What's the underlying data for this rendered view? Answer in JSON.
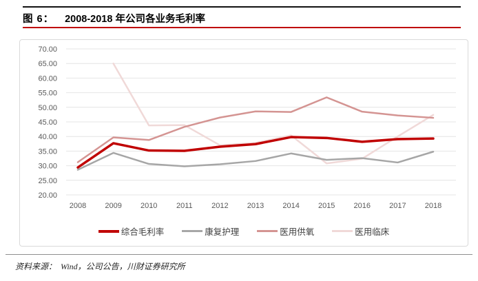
{
  "header": {
    "figure_label": "图 6：",
    "title": "2008-2018 年公司各业务毛利率",
    "accent_color": "#bf0000"
  },
  "chart_data": {
    "type": "line",
    "title": "2008-2018 年公司各业务毛利率",
    "categories": [
      "2008",
      "2009",
      "2010",
      "2011",
      "2012",
      "2013",
      "2014",
      "2015",
      "2016",
      "2017",
      "2018"
    ],
    "series": [
      {
        "name": "综合毛利率",
        "color": "#c00000",
        "stroke_width": 3.5,
        "values": [
          29.4,
          37.7,
          35.2,
          35.1,
          36.5,
          37.4,
          39.8,
          39.5,
          38.2,
          39.1,
          39.3
        ]
      },
      {
        "name": "康复护理",
        "color": "#a6a6a6",
        "stroke_width": 2.5,
        "values": [
          28.6,
          34.4,
          30.6,
          29.8,
          30.5,
          31.6,
          34.2,
          32.0,
          32.6,
          31.1,
          34.8
        ]
      },
      {
        "name": "医用供氧",
        "color": "#d49492",
        "stroke_width": 2.5,
        "values": [
          31.2,
          39.7,
          38.8,
          43.3,
          46.5,
          48.6,
          48.4,
          53.4,
          48.5,
          47.2,
          46.4
        ]
      },
      {
        "name": "医用临床",
        "color": "#f0d9d8",
        "stroke_width": 2.5,
        "values": [
          null,
          65.0,
          43.8,
          43.9,
          37.0,
          37.8,
          40.4,
          30.8,
          32.4,
          40.0,
          47.4
        ]
      }
    ],
    "ylim": [
      20,
      70
    ],
    "ytick_step": 5,
    "ytick_labels": [
      "70.00",
      "65.00",
      "60.00",
      "55.00",
      "50.00",
      "45.00",
      "40.00",
      "35.00",
      "30.00",
      "25.00",
      "20.00"
    ],
    "xlabel": "",
    "ylabel": "",
    "grid": true,
    "legend_position": "bottom",
    "axis_label_color": "#595959",
    "gridline_color": "#e4e4e4"
  },
  "footer": {
    "source_label": "资料来源：",
    "source_text": "Wind，公司公告，川财证券研究所"
  }
}
